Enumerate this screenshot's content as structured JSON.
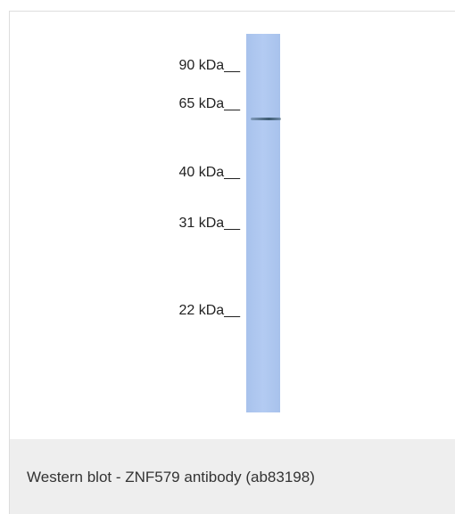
{
  "figure": {
    "markers": [
      "90 kDa__",
      "65 kDa__",
      "40 kDa__",
      "31 kDa__",
      "22 kDa__"
    ]
  },
  "caption": "Western blot - ZNF579 antibody (ab83198)"
}
